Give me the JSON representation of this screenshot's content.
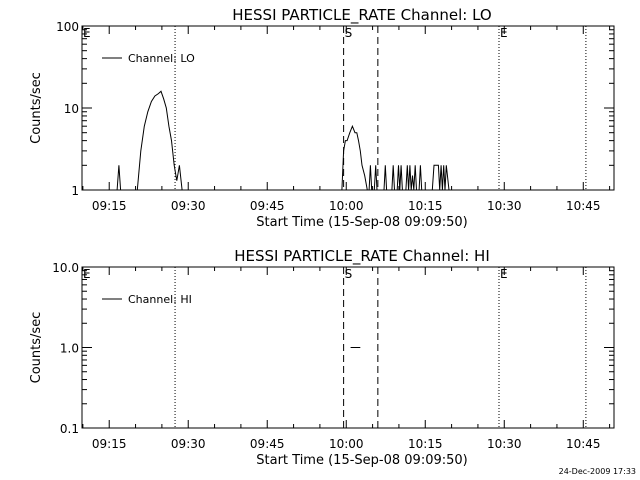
{
  "timestamp": "24-Dec-2009 17:33",
  "chart_data": [
    {
      "type": "line",
      "title": "HESSI PARTICLE_RATE Channel: LO",
      "xlabel": "Start Time (15-Sep-08 09:09:50)",
      "ylabel": "Counts/sec",
      "legend": "Channel: LO",
      "legend_position": "top-left",
      "y_scale": "log",
      "ylim": [
        1,
        100
      ],
      "y_ticks": [
        "1",
        "10",
        "100"
      ],
      "xlim": [
        "09:09:50",
        "10:50:50"
      ],
      "x_ticks": [
        "09:15",
        "09:30",
        "09:45",
        "10:00",
        "10:15",
        "10:30",
        "10:45"
      ],
      "events": [
        {
          "label": "E",
          "time": "09:09:50",
          "style": "none"
        },
        {
          "label": "",
          "time": "09:27:30",
          "style": "dotted"
        },
        {
          "label": "S",
          "time": "09:59:30",
          "style": "dashed"
        },
        {
          "label": "",
          "time": "10:06:00",
          "style": "dashed"
        },
        {
          "label": "E",
          "time": "10:29:00",
          "style": "dotted"
        },
        {
          "label": "",
          "time": "10:45:30",
          "style": "dotted"
        }
      ],
      "series": [
        {
          "x": [
            "09:16:30",
            "09:16:50",
            "09:17:10",
            "09:20:20",
            "09:21:00",
            "09:21:40",
            "09:22:20",
            "09:23:00",
            "09:23:40",
            "09:24:20",
            "09:24:50",
            "09:25:20",
            "09:25:50",
            "09:26:20",
            "09:26:50",
            "09:27:20",
            "09:27:50",
            "09:28:20",
            "09:28:50",
            "09:59:10",
            "09:59:30",
            "09:59:50",
            "10:00:10",
            "10:00:40",
            "10:01:10",
            "10:01:40",
            "10:02:00",
            "10:02:20",
            "10:02:40",
            "10:03:00",
            "10:03:30",
            "10:04:00",
            "10:04:20",
            "10:04:35",
            "10:04:50",
            "10:05:20",
            "10:05:35",
            "10:05:50",
            "10:07:10",
            "10:07:25",
            "10:07:40",
            "10:08:40",
            "10:08:55",
            "10:09:10",
            "10:09:40",
            "10:09:55",
            "10:10:10",
            "10:10:25",
            "10:10:40",
            "10:11:20",
            "10:11:35",
            "10:11:50",
            "10:12:05",
            "10:12:20",
            "10:12:35",
            "10:12:50",
            "10:13:05",
            "10:13:20",
            "10:13:50",
            "10:14:05",
            "10:14:20",
            "10:16:20",
            "10:16:40",
            "10:16:55",
            "10:17:10",
            "10:17:30",
            "10:17:45",
            "10:18:00",
            "10:18:15",
            "10:18:30",
            "10:18:45",
            "10:19:00",
            "10:19:30"
          ],
          "y": [
            1,
            2,
            1,
            1,
            3,
            6,
            9,
            12,
            14,
            15,
            16,
            13,
            10,
            6,
            4,
            2,
            1.3,
            2,
            1,
            1,
            3,
            4,
            4,
            5,
            6,
            5,
            5,
            4,
            3,
            2,
            1.5,
            1,
            1,
            2,
            1,
            1,
            2,
            1,
            1,
            2,
            1,
            1,
            2,
            1,
            1,
            2,
            1,
            2,
            1,
            1,
            2,
            1,
            2,
            1,
            1.5,
            1,
            2,
            1,
            1,
            2,
            1,
            1,
            2,
            2,
            2,
            2,
            1,
            2,
            1,
            2,
            1,
            2,
            1
          ]
        }
      ]
    },
    {
      "type": "line",
      "title": "HESSI PARTICLE_RATE Channel: HI",
      "xlabel": "Start Time (15-Sep-08 09:09:50)",
      "ylabel": "Counts/sec",
      "legend": "Channel: HI",
      "legend_position": "top-left",
      "y_scale": "log",
      "ylim": [
        0.1,
        10
      ],
      "y_ticks": [
        "0.1",
        "1.0",
        "10.0"
      ],
      "xlim": [
        "09:09:50",
        "10:50:50"
      ],
      "x_ticks": [
        "09:15",
        "09:30",
        "09:45",
        "10:00",
        "10:15",
        "10:30",
        "10:45"
      ],
      "events": [
        {
          "label": "E",
          "time": "09:09:50",
          "style": "none"
        },
        {
          "label": "",
          "time": "09:27:30",
          "style": "dotted"
        },
        {
          "label": "S",
          "time": "09:59:30",
          "style": "dashed"
        },
        {
          "label": "",
          "time": "10:06:00",
          "style": "dashed"
        },
        {
          "label": "E",
          "time": "10:29:00",
          "style": "dotted"
        },
        {
          "label": "",
          "time": "10:45:30",
          "style": "dotted"
        }
      ],
      "series": [
        {
          "x": [
            "10:00:50",
            "10:02:40"
          ],
          "y": [
            1,
            1
          ]
        }
      ]
    }
  ]
}
